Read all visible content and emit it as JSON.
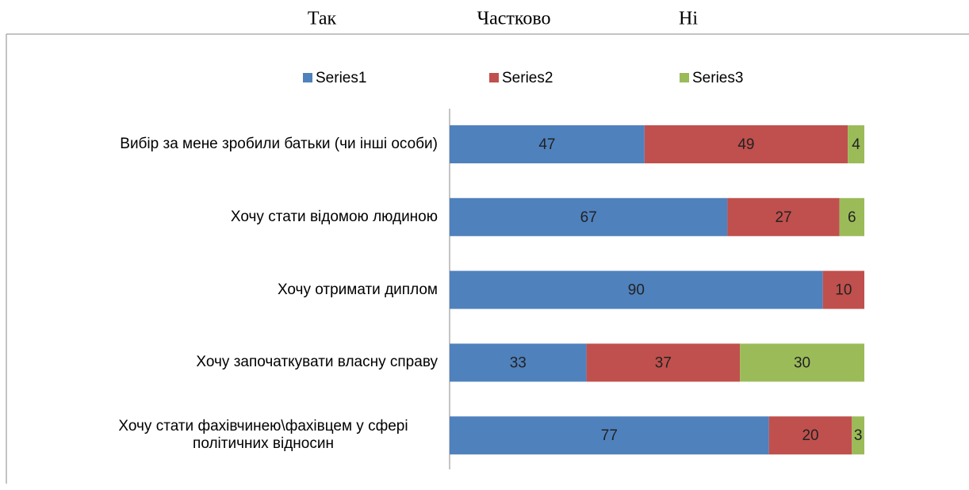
{
  "header_labels": [
    "Так",
    "Частково",
    "Ні"
  ],
  "chart_data": {
    "type": "stacked-barh",
    "categories": [
      "Вибір за мене зробили батьки (чи інші особи)",
      "Хочу стати відомою людиною",
      "Хочу отримати диплом",
      "Хочу започаткувати власну справу",
      "Хочу стати фахівчинею\\фахівцем у сфері політичних відносин"
    ],
    "series": [
      {
        "name": "Series1",
        "color": "#4f81bd",
        "values": [
          47,
          67,
          90,
          33,
          77
        ]
      },
      {
        "name": "Series2",
        "color": "#c0504d",
        "values": [
          49,
          27,
          10,
          37,
          20
        ]
      },
      {
        "name": "Series3",
        "color": "#9bbb59",
        "values": [
          4,
          6,
          null,
          30,
          3
        ]
      }
    ],
    "xlim": [
      0,
      100
    ],
    "legend": "top"
  }
}
